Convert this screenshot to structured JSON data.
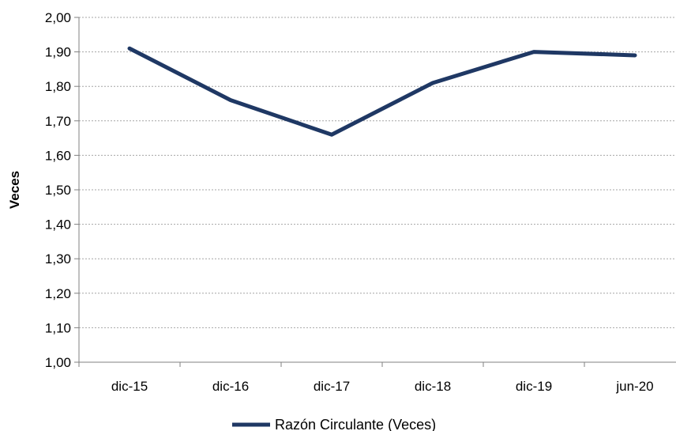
{
  "chart_data": {
    "type": "line",
    "categories": [
      "dic-15",
      "dic-16",
      "dic-17",
      "dic-18",
      "dic-19",
      "jun-20"
    ],
    "series": [
      {
        "name": "Razón Circulante (Veces)",
        "values": [
          1.91,
          1.76,
          1.66,
          1.81,
          1.9,
          1.89
        ],
        "color": "#1f3864"
      }
    ],
    "ylabel": "Veces",
    "xlabel": "",
    "ylim": [
      1.0,
      2.0
    ],
    "yticks": [
      "1,00",
      "1,10",
      "1,20",
      "1,30",
      "1,40",
      "1,50",
      "1,60",
      "1,70",
      "1,80",
      "1,90",
      "2,00"
    ],
    "grid": true,
    "legend": "bottom"
  }
}
